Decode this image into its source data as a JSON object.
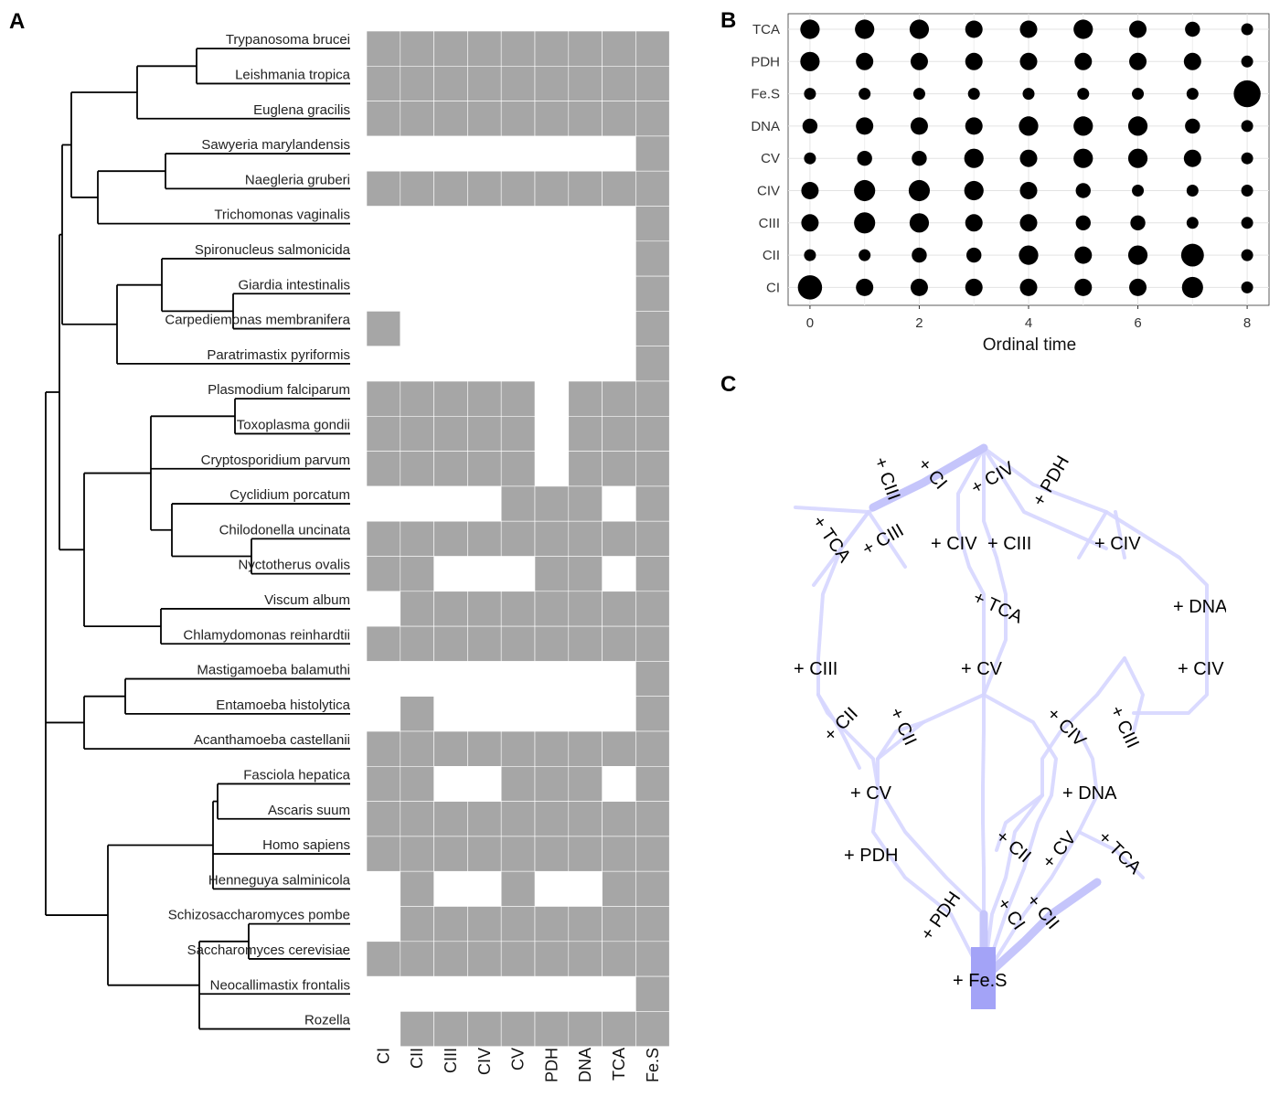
{
  "panels": {
    "a": "A",
    "b": "B",
    "c": "C"
  },
  "chart_data": [
    {
      "panel": "A",
      "type": "heatmap",
      "rows": [
        "Trypanosoma brucei",
        "Leishmania tropica",
        "Euglena gracilis",
        "Sawyeria marylandensis",
        "Naegleria gruberi",
        "Trichomonas vaginalis",
        "Spironucleus salmonicida",
        "Giardia intestinalis",
        "Carpediemonas membranifera",
        "Paratrimastix pyriformis",
        "Plasmodium falciparum",
        "Toxoplasma gondii",
        "Cryptosporidium parvum",
        "Cyclidium porcatum",
        "Chilodonella uncinata",
        "Nyctotherus ovalis",
        "Viscum album",
        "Chlamydomonas reinhardtii",
        "Mastigamoeba balamuthi",
        "Entamoeba histolytica",
        "Acanthamoeba castellanii",
        "Fasciola hepatica",
        "Ascaris suum",
        "Homo sapiens",
        "Henneguya salminicola",
        "Schizosaccharomyces pombe",
        "Saccharomyces cerevisiae",
        "Neocallimastix frontalis",
        "Rozella"
      ],
      "columns": [
        "CI",
        "CII",
        "CIII",
        "CIV",
        "CV",
        "PDH",
        "DNA",
        "TCA",
        "Fe.S"
      ],
      "presence": [
        [
          1,
          1,
          1,
          1,
          1,
          1,
          1,
          1,
          1
        ],
        [
          1,
          1,
          1,
          1,
          1,
          1,
          1,
          1,
          1
        ],
        [
          1,
          1,
          1,
          1,
          1,
          1,
          1,
          1,
          1
        ],
        [
          0,
          0,
          0,
          0,
          0,
          0,
          0,
          0,
          1
        ],
        [
          1,
          1,
          1,
          1,
          1,
          1,
          1,
          1,
          1
        ],
        [
          0,
          0,
          0,
          0,
          0,
          0,
          0,
          0,
          1
        ],
        [
          0,
          0,
          0,
          0,
          0,
          0,
          0,
          0,
          1
        ],
        [
          0,
          0,
          0,
          0,
          0,
          0,
          0,
          0,
          1
        ],
        [
          1,
          0,
          0,
          0,
          0,
          0,
          0,
          0,
          1
        ],
        [
          0,
          0,
          0,
          0,
          0,
          0,
          0,
          0,
          1
        ],
        [
          1,
          1,
          1,
          1,
          1,
          0,
          1,
          1,
          1
        ],
        [
          1,
          1,
          1,
          1,
          1,
          0,
          1,
          1,
          1
        ],
        [
          1,
          1,
          1,
          1,
          1,
          0,
          1,
          1,
          1
        ],
        [
          0,
          0,
          0,
          0,
          1,
          1,
          1,
          0,
          1
        ],
        [
          1,
          1,
          1,
          1,
          1,
          1,
          1,
          1,
          1
        ],
        [
          1,
          1,
          0,
          0,
          0,
          1,
          1,
          0,
          1
        ],
        [
          0,
          1,
          1,
          1,
          1,
          1,
          1,
          1,
          1
        ],
        [
          1,
          1,
          1,
          1,
          1,
          1,
          1,
          1,
          1
        ],
        [
          0,
          0,
          0,
          0,
          0,
          0,
          0,
          0,
          1
        ],
        [
          0,
          1,
          0,
          0,
          0,
          0,
          0,
          0,
          1
        ],
        [
          1,
          1,
          1,
          1,
          1,
          1,
          1,
          1,
          1
        ],
        [
          1,
          1,
          0,
          0,
          1,
          1,
          1,
          0,
          1
        ],
        [
          1,
          1,
          1,
          1,
          1,
          1,
          1,
          1,
          1
        ],
        [
          1,
          1,
          1,
          1,
          1,
          1,
          1,
          1,
          1
        ],
        [
          0,
          1,
          0,
          0,
          1,
          0,
          0,
          1,
          1
        ],
        [
          0,
          1,
          1,
          1,
          1,
          1,
          1,
          1,
          1
        ],
        [
          1,
          1,
          1,
          1,
          1,
          1,
          1,
          1,
          1
        ],
        [
          0,
          0,
          0,
          0,
          0,
          0,
          0,
          0,
          1
        ],
        [
          0,
          1,
          1,
          1,
          1,
          1,
          1,
          1,
          1
        ]
      ],
      "cell_color": "#a6a6a6"
    },
    {
      "panel": "B",
      "type": "scatter",
      "xlabel": "Ordinal time",
      "x_ticks": [
        0,
        2,
        4,
        6,
        8
      ],
      "xlim": [
        -0.4,
        8.4
      ],
      "categories": [
        "TCA",
        "PDH",
        "Fe.S",
        "DNA",
        "CV",
        "CIV",
        "CIII",
        "CII",
        "CI"
      ],
      "x": [
        0,
        1,
        2,
        3,
        4,
        5,
        6,
        7,
        8
      ],
      "sizes": [
        [
          4,
          4,
          4,
          3,
          3,
          4,
          3,
          2,
          1
        ],
        [
          4,
          3,
          3,
          3,
          3,
          3,
          3,
          3,
          1
        ],
        [
          1,
          1,
          1,
          1,
          1,
          1,
          1,
          1,
          9
        ],
        [
          2,
          3,
          3,
          3,
          4,
          4,
          4,
          2,
          1
        ],
        [
          1,
          2,
          2,
          4,
          3,
          4,
          4,
          3,
          1
        ],
        [
          3,
          5,
          5,
          4,
          3,
          2,
          1,
          1,
          1
        ],
        [
          3,
          5,
          4,
          3,
          3,
          2,
          2,
          1,
          1
        ],
        [
          1,
          1,
          2,
          2,
          4,
          3,
          4,
          6,
          1
        ],
        [
          7,
          3,
          3,
          3,
          3,
          3,
          3,
          5,
          1
        ]
      ],
      "point_color": "#000000",
      "grid": true
    },
    {
      "panel": "C",
      "type": "diagram",
      "edge_color": "#d6d6ff",
      "highlight_color": "#a3a3f7",
      "labels": [
        "+ CIII",
        "+ CI",
        "+ CIV",
        "+ PDH",
        "+ TCA",
        "+ CIII",
        "+ CIV",
        "+ CIII",
        "+ CIV",
        "+ TCA",
        "+ DNA",
        "+ CIII",
        "+ CV",
        "+ CIV",
        "+ CII",
        "+ CII",
        "+ CIV",
        "+ CIII",
        "+ CV",
        "+ DNA",
        "+ PDH",
        "+ CII",
        "+ CV",
        "+ TCA",
        "+ PDH",
        "+ CI",
        "+ CII",
        "+ Fe.S"
      ]
    }
  ]
}
